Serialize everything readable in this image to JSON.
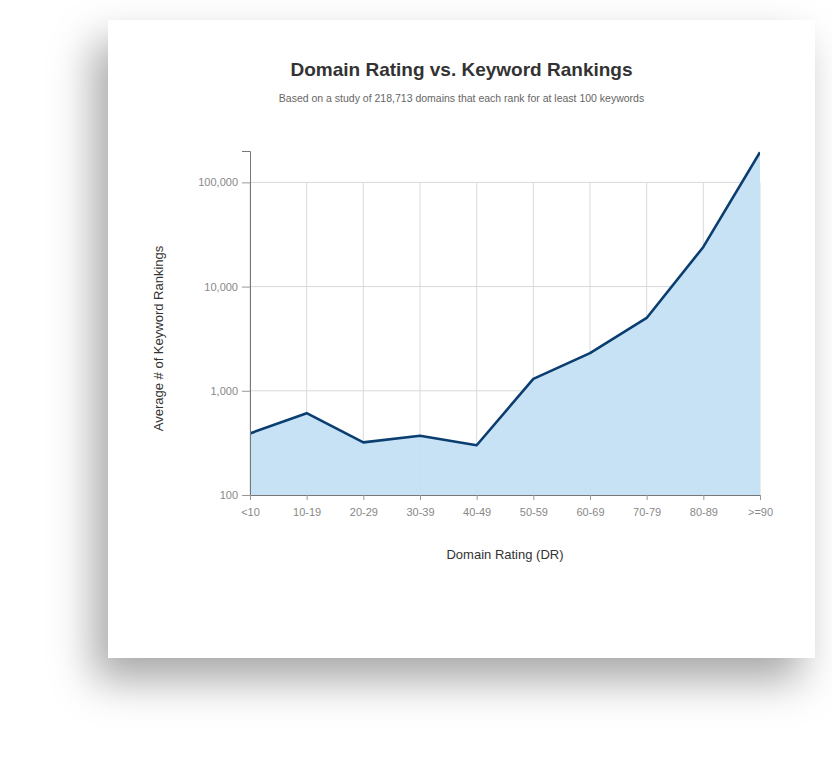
{
  "chart_data": {
    "type": "area",
    "title": "Domain Rating vs. Keyword Rankings",
    "subtitle": "Based on a study of 218,713 domains that each rank for at least 100 keywords",
    "x_label": "Domain Rating (DR)",
    "y_label": "Average # of Keyword Rankings",
    "categories": [
      "<10",
      "10-19",
      "20-29",
      "30-39",
      "40-49",
      "50-59",
      "60-69",
      "70-79",
      "80-89",
      ">=90"
    ],
    "values": [
      390,
      610,
      320,
      370,
      300,
      1300,
      2300,
      5000,
      24000,
      195000
    ],
    "color": "#0b3e70",
    "log": "y",
    "ylim": [
      100,
      200000
    ],
    "yticks": [
      100,
      {
        "value": 1000,
        "label": "1,000"
      },
      {
        "value": 10000,
        "label": "10,000"
      },
      {
        "value": 100000,
        "label": "100,000"
      }
    ],
    "grid": true
  }
}
